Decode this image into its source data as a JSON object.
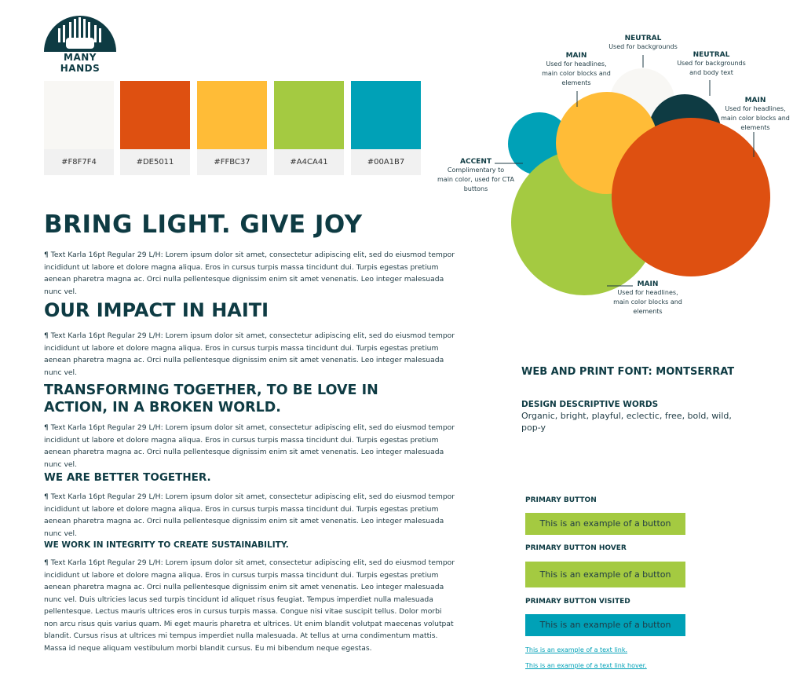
{
  "logo": {
    "text": "MANY HANDS"
  },
  "palette": [
    {
      "hex_label": "#F8F7F4",
      "color": "#F8F7F4"
    },
    {
      "hex_label": "#DE5011",
      "color": "#DE5011"
    },
    {
      "hex_label": "#FFBC37",
      "color": "#FFBC37"
    },
    {
      "hex_label": "#A4CA41",
      "color": "#A4CA41"
    },
    {
      "hex_label": "#00A1B7",
      "color": "#00A1B7"
    }
  ],
  "headings": {
    "h1": "BRING LIGHT. GIVE JOY",
    "h2": "OUR IMPACT IN HAITI",
    "h3_line1": "TRANSFORMING TOGETHER, TO BE LOVE IN",
    "h3_line2": "ACTION, IN A BROKEN WORLD.",
    "h4": "WE ARE BETTER TOGETHER.",
    "h5": "WE WORK IN INTEGRITY TO CREATE SUSTAINABILITY."
  },
  "body_text": {
    "para": "¶ Text Karla 16pt Regular 29 L/H: Lorem ipsum dolor sit amet, consectetur adipiscing elit, sed do eiusmod tempor incididunt ut labore et dolore magna aliqua. Eros in cursus turpis massa tincidunt dui. Turpis egestas pretium aenean pharetra magna ac. Orci nulla pellentesque dignissim enim sit amet venenatis. Leo integer malesuada nunc vel.",
    "long_para": "¶ Text Karla 16pt Regular 29 L/H: Lorem ipsum dolor sit amet, consectetur adipiscing elit, sed do eiusmod tempor incididunt ut labore et dolore magna aliqua. Eros in cursus turpis massa tincidunt dui. Turpis egestas pretium aenean pharetra magna ac. Orci nulla pellentesque dignissim enim sit amet venenatis. Leo integer malesuada nunc vel. Duis ultricies lacus sed turpis tincidunt id aliquet risus feugiat. Tempus imperdiet nulla malesuada pellentesque. Lectus mauris ultrices eros in cursus turpis massa. Congue nisi vitae suscipit tellus. Dolor morbi non arcu risus quis varius quam. Mi eget mauris pharetra et ultrices. Ut enim blandit volutpat maecenas volutpat blandit. Cursus risus at ultrices mi tempus imperdiet nulla malesuada. At tellus at urna condimentum mattis. Massa id neque aliquam vestibulum morbi blandit cursus. Eu mi bibendum neque egestas."
  },
  "color_diagram": {
    "neutral_top": {
      "title": "NEUTRAL",
      "sub": "Used for backgrounds"
    },
    "neutral_right": {
      "title": "NEUTRAL",
      "sub1": "Used for backgrounds",
      "sub2": "and body text"
    },
    "main_left": {
      "title": "MAIN",
      "sub1": "Used for headlines,",
      "sub2": "main color blocks and",
      "sub3": "elements"
    },
    "main_right": {
      "title": "MAIN",
      "sub1": "Used for headlines,",
      "sub2": "main color blocks and",
      "sub3": "elements"
    },
    "accent": {
      "title": "ACCENT",
      "sub1": "Complimentary to",
      "sub2": "main color, used for CTA",
      "sub3": "buttons"
    },
    "main_bottom": {
      "title": "MAIN",
      "sub1": "Used for headlines,",
      "sub2": "main color blocks and",
      "sub3": "elements"
    },
    "colors": {
      "neutral_light": "#F8F7F4",
      "neutral_dark": "#0E3B43",
      "yellow": "#FFBC37",
      "orange": "#DE5011",
      "green": "#A4CA41",
      "teal": "#00A1B7"
    }
  },
  "fonts": {
    "web_print": "WEB AND PRINT FONT: MONTSERRAT",
    "descriptive_title": "DESIGN DESCRIPTIVE WORDS",
    "descriptive_words": "Organic, bright, playful, eclectic, free, bold, wild, pop-y"
  },
  "buttons": {
    "primary_label": "PRIMARY BUTTON",
    "primary_text": "This is an example of a button",
    "hover_label": "PRIMARY BUTTON HOVER",
    "hover_text": "This is an example of a button",
    "visited_label": "PRIMARY BUTTON VISITED",
    "visited_text": "This is an example of a button",
    "link_text": "This is an example of a text link.",
    "link_hover_text": "This is an example of a text link hover."
  }
}
